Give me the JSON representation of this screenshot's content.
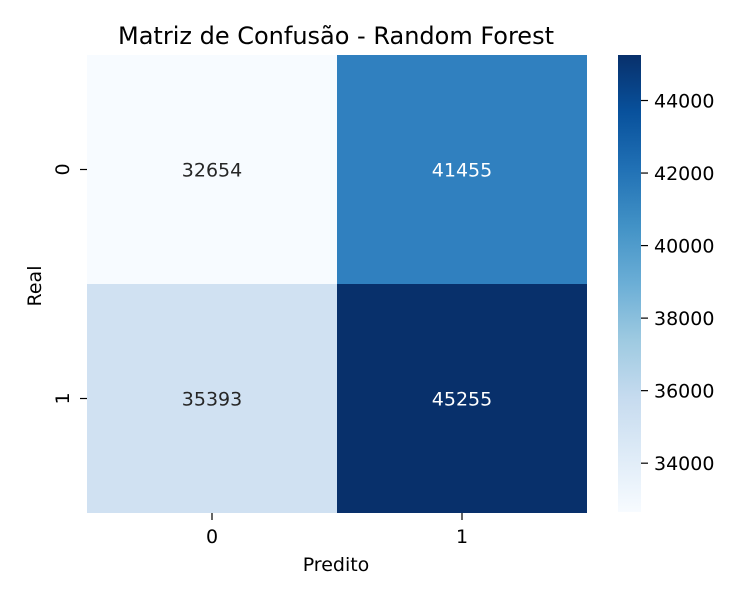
{
  "chart_data": {
    "type": "heatmap",
    "title": "Matriz de Confusão - Random Forest",
    "xlabel": "Predito",
    "ylabel": "Real",
    "x_categories": [
      "0",
      "1"
    ],
    "y_categories": [
      "0",
      "1"
    ],
    "values": [
      [
        32654,
        41455
      ],
      [
        35393,
        45255
      ]
    ],
    "colormap": "Blues",
    "colorbar": {
      "ticks": [
        "34000",
        "36000",
        "38000",
        "40000",
        "42000",
        "44000"
      ],
      "range": [
        32654,
        45255
      ]
    },
    "cell_colors": [
      [
        "#f7fbff",
        "#3080bf"
      ],
      [
        "#d0e1f2",
        "#08306b"
      ]
    ],
    "annotation_colors": [
      [
        "#262626",
        "#ffffff"
      ],
      [
        "#262626",
        "#ffffff"
      ]
    ],
    "colormap_stops": [
      "#f7fbff",
      "#deebf7",
      "#c6dbef",
      "#9ecae1",
      "#6baed6",
      "#4292c6",
      "#2171b5",
      "#08519c",
      "#08306b"
    ]
  }
}
